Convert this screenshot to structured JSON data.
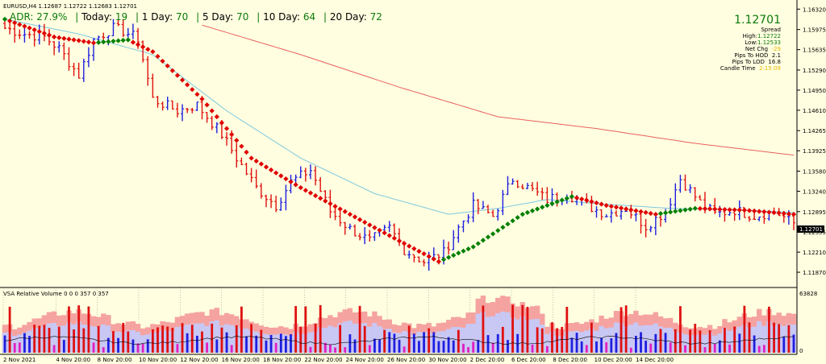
{
  "symbol_line": "EURUSD,H4  1.12687 1.12722 1.12683 1.12701",
  "adr": {
    "adr_label": "ADR:",
    "adr_value": "27.9%",
    "today_label": "Today:",
    "today_value": "19",
    "d1_label": "1 Day:",
    "d1_value": "70",
    "d5_label": "5 Day:",
    "d5_value": "70",
    "d10_label": "10 Day:",
    "d10_value": "64",
    "d20_label": "20 Day:",
    "d20_value": "72"
  },
  "info": {
    "price": "1.12701",
    "spread_label": "Spread",
    "high_label": "High:",
    "high_value": "1.12722",
    "low_label": "Low:",
    "low_value": "1.12533",
    "netchg_label": "Net Chg",
    "netchg_value": "-29",
    "hod_label": "Pips To HOD",
    "hod_value": "2.1",
    "lod_label": "Pips To LOD",
    "lod_value": "16.8",
    "candle_label": "Candle Time",
    "candle_value": "2:15:09"
  },
  "colors": {
    "bg": "#FFFEE0",
    "bull": "#1F1FE0",
    "bear": "#E01010",
    "ma_red": "#E00000",
    "ma_green": "#008000",
    "ma_slow": "#E86060",
    "ma_mid": "#7EC8E0",
    "vol_pink": "#F5A3A0",
    "vol_lav": "#C8C8F5"
  },
  "chart_data": [
    {
      "type": "candlestick",
      "title": "EURUSD,H4",
      "ylim": [
        1.1168,
        1.1642
      ],
      "price_ticks": [
        "1.16320",
        "1.15975",
        "1.15635",
        "1.15290",
        "1.14950",
        "1.14610",
        "1.14265",
        "1.13925",
        "1.13580",
        "1.13240",
        "1.12895",
        "1.12555",
        "1.12210",
        "1.11870"
      ],
      "current_price": "1.12701",
      "x_labels": [
        "2 Nov 2021",
        "4 Nov 20:00",
        "8 Nov 20:00",
        "10 Nov 20:00",
        "12 Nov 20:00",
        "16 Nov 20:00",
        "18 Nov 20:00",
        "22 Nov 20:00",
        "24 Nov 20:00",
        "26 Nov 20:00",
        "30 Nov 20:00",
        "2 Dec 20:00",
        "6 Dec 20:00",
        "8 Dec 20:00",
        "10 Dec 20:00",
        "14 Dec 20:00"
      ],
      "close_anchors": [
        [
          0,
          1.16
        ],
        [
          4,
          1.159
        ],
        [
          8,
          1.1585
        ],
        [
          11,
          1.1565
        ],
        [
          15,
          1.152
        ],
        [
          18,
          1.158
        ],
        [
          22,
          1.16
        ],
        [
          24,
          1.1595
        ],
        [
          27,
          1.1582
        ],
        [
          30,
          1.148
        ],
        [
          35,
          1.146
        ],
        [
          39,
          1.147
        ],
        [
          44,
          1.142
        ],
        [
          47,
          1.138
        ],
        [
          51,
          1.133
        ],
        [
          55,
          1.13
        ],
        [
          58,
          1.134
        ],
        [
          62,
          1.136
        ],
        [
          66,
          1.129
        ],
        [
          70,
          1.126
        ],
        [
          74,
          1.124
        ],
        [
          78,
          1.1262
        ],
        [
          81,
          1.1225
        ],
        [
          85,
          1.1205
        ],
        [
          89,
          1.122
        ],
        [
          92,
          1.1262
        ],
        [
          95,
          1.13
        ],
        [
          99,
          1.1282
        ],
        [
          103,
          1.1345
        ],
        [
          107,
          1.1325
        ],
        [
          110,
          1.131
        ],
        [
          114,
          1.132
        ],
        [
          118,
          1.13
        ],
        [
          122,
          1.1285
        ],
        [
          126,
          1.1295
        ],
        [
          130,
          1.1265
        ],
        [
          134,
          1.129
        ],
        [
          137,
          1.1345
        ],
        [
          141,
          1.1305
        ],
        [
          144,
          1.1285
        ],
        [
          148,
          1.1292
        ],
        [
          152,
          1.1282
        ],
        [
          156,
          1.129
        ],
        [
          160,
          1.127
        ]
      ],
      "series": [
        {
          "name": "fast MA",
          "values": [
            [
              0,
              1.1615
            ],
            [
              10,
              1.1585
            ],
            [
              18,
              1.1575
            ],
            [
              25,
              1.158
            ],
            [
              30,
              1.156
            ],
            [
              40,
              1.148
            ],
            [
              50,
              1.138
            ],
            [
              60,
              1.133
            ],
            [
              70,
              1.1285
            ],
            [
              80,
              1.124
            ],
            [
              88,
              1.1205
            ],
            [
              95,
              1.123
            ],
            [
              105,
              1.1285
            ],
            [
              115,
              1.1315
            ],
            [
              122,
              1.13
            ],
            [
              132,
              1.1285
            ],
            [
              140,
              1.1295
            ],
            [
              150,
              1.1292
            ],
            [
              160,
              1.1285
            ]
          ]
        },
        {
          "name": "slow MA",
          "values": [
            [
              40,
              1.1605
            ],
            [
              60,
              1.1555
            ],
            [
              80,
              1.15
            ],
            [
              100,
              1.145
            ],
            [
              120,
              1.143
            ],
            [
              140,
              1.1405
            ],
            [
              160,
              1.1385
            ]
          ]
        },
        {
          "name": "mid MA",
          "values": [
            [
              0,
              1.1615
            ],
            [
              15,
              1.159
            ],
            [
              30,
              1.1555
            ],
            [
              45,
              1.146
            ],
            [
              60,
              1.138
            ],
            [
              75,
              1.132
            ],
            [
              90,
              1.1285
            ],
            [
              100,
              1.1295
            ],
            [
              110,
              1.131
            ],
            [
              120,
              1.1303
            ],
            [
              135,
              1.1295
            ],
            [
              150,
              1.1292
            ],
            [
              160,
              1.1288
            ]
          ]
        }
      ]
    },
    {
      "type": "bar",
      "title": "VSA Relative Volume 0 0 0 357 0 357",
      "ylim": [
        0,
        63828
      ],
      "ticks": [
        "63828",
        "0"
      ]
    }
  ]
}
